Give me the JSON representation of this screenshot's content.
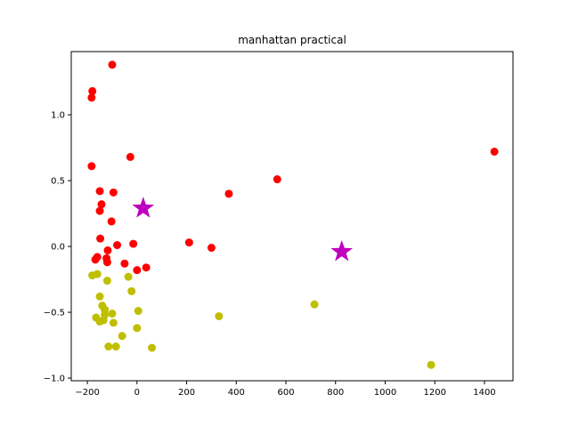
{
  "chart_data": {
    "type": "scatter",
    "title": "manhattan practical",
    "xlabel": "",
    "ylabel": "",
    "xlim": [
      -265,
      1515
    ],
    "ylim": [
      -1.02,
      1.48
    ],
    "x_ticks": [
      -200,
      0,
      200,
      400,
      600,
      800,
      1000,
      1200,
      1400
    ],
    "x_tick_labels": [
      "−200",
      "0",
      "200",
      "400",
      "600",
      "800",
      "1000",
      "1200",
      "1400"
    ],
    "y_ticks": [
      -1.0,
      -0.5,
      0.0,
      0.5,
      1.0
    ],
    "y_tick_labels": [
      "−1.0",
      "−0.5",
      "0.0",
      "0.5",
      "1.0"
    ],
    "grid": false,
    "series": [
      {
        "color": "#ff0000",
        "marker": "circle",
        "points": [
          [
            -100,
            1.38
          ],
          [
            -180,
            1.18
          ],
          [
            -183,
            1.13
          ],
          [
            -183,
            0.61
          ],
          [
            -27,
            0.68
          ],
          [
            -150,
            0.42
          ],
          [
            -95,
            0.41
          ],
          [
            -143,
            0.32
          ],
          [
            -150,
            0.27
          ],
          [
            -103,
            0.19
          ],
          [
            -148,
            0.06
          ],
          [
            -80,
            0.01
          ],
          [
            -15,
            0.02
          ],
          [
            -160,
            -0.08
          ],
          [
            -168,
            -0.1
          ],
          [
            -118,
            -0.03
          ],
          [
            -123,
            -0.09
          ],
          [
            -120,
            -0.12
          ],
          [
            -50,
            -0.13
          ],
          [
            0,
            -0.18
          ],
          [
            37,
            -0.16
          ],
          [
            210,
            0.03
          ],
          [
            300,
            -0.01
          ],
          [
            370,
            0.4
          ],
          [
            565,
            0.51
          ],
          [
            1440,
            0.72
          ]
        ]
      },
      {
        "color": "#bfbf00",
        "marker": "circle",
        "points": [
          [
            -180,
            -0.22
          ],
          [
            -160,
            -0.21
          ],
          [
            -120,
            -0.26
          ],
          [
            -35,
            -0.23
          ],
          [
            -22,
            -0.34
          ],
          [
            -150,
            -0.38
          ],
          [
            -140,
            -0.45
          ],
          [
            -130,
            -0.48
          ],
          [
            -130,
            -0.52
          ],
          [
            -100,
            -0.51
          ],
          [
            -165,
            -0.54
          ],
          [
            -150,
            -0.57
          ],
          [
            -135,
            -0.56
          ],
          [
            -95,
            -0.58
          ],
          [
            5,
            -0.49
          ],
          [
            0,
            -0.62
          ],
          [
            -60,
            -0.68
          ],
          [
            -115,
            -0.76
          ],
          [
            -85,
            -0.76
          ],
          [
            60,
            -0.77
          ],
          [
            330,
            -0.53
          ],
          [
            715,
            -0.44
          ],
          [
            1185,
            -0.9
          ]
        ]
      },
      {
        "color": "#bf00bf",
        "marker": "star",
        "points": [
          [
            25,
            0.29
          ],
          [
            825,
            -0.04
          ]
        ]
      }
    ]
  }
}
